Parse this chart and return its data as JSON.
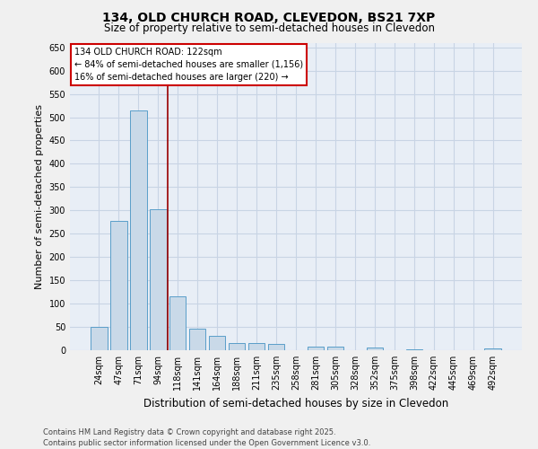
{
  "title_line1": "134, OLD CHURCH ROAD, CLEVEDON, BS21 7XP",
  "title_line2": "Size of property relative to semi-detached houses in Clevedon",
  "xlabel": "Distribution of semi-detached houses by size in Clevedon",
  "ylabel": "Number of semi-detached properties",
  "categories": [
    "24sqm",
    "47sqm",
    "71sqm",
    "94sqm",
    "118sqm",
    "141sqm",
    "164sqm",
    "188sqm",
    "211sqm",
    "235sqm",
    "258sqm",
    "281sqm",
    "305sqm",
    "328sqm",
    "352sqm",
    "375sqm",
    "398sqm",
    "422sqm",
    "445sqm",
    "469sqm",
    "492sqm"
  ],
  "values": [
    50,
    277,
    515,
    302,
    115,
    46,
    30,
    15,
    15,
    13,
    0,
    8,
    8,
    0,
    6,
    0,
    2,
    0,
    0,
    0,
    4
  ],
  "bar_color": "#c9d9e8",
  "bar_edge_color": "#5a9ec9",
  "ref_line_x": 3.5,
  "ref_label": "134 OLD CHURCH ROAD: 122sqm",
  "annot_line1": "← 84% of semi-detached houses are smaller (1,156)",
  "annot_line2": "16% of semi-detached houses are larger (220) →",
  "annot_box_color": "#cc0000",
  "ylim": [
    0,
    660
  ],
  "yticks": [
    0,
    50,
    100,
    150,
    200,
    250,
    300,
    350,
    400,
    450,
    500,
    550,
    600,
    650
  ],
  "grid_color": "#c8d4e4",
  "plot_bg_color": "#e8eef6",
  "fig_bg_color": "#f0f0f0",
  "footer_line1": "Contains HM Land Registry data © Crown copyright and database right 2025.",
  "footer_line2": "Contains public sector information licensed under the Open Government Licence v3.0.",
  "title1_fontsize": 10,
  "title2_fontsize": 8.5,
  "ylabel_fontsize": 8,
  "xlabel_fontsize": 8.5,
  "tick_fontsize": 7,
  "footer_fontsize": 6,
  "annot_fontsize": 7
}
